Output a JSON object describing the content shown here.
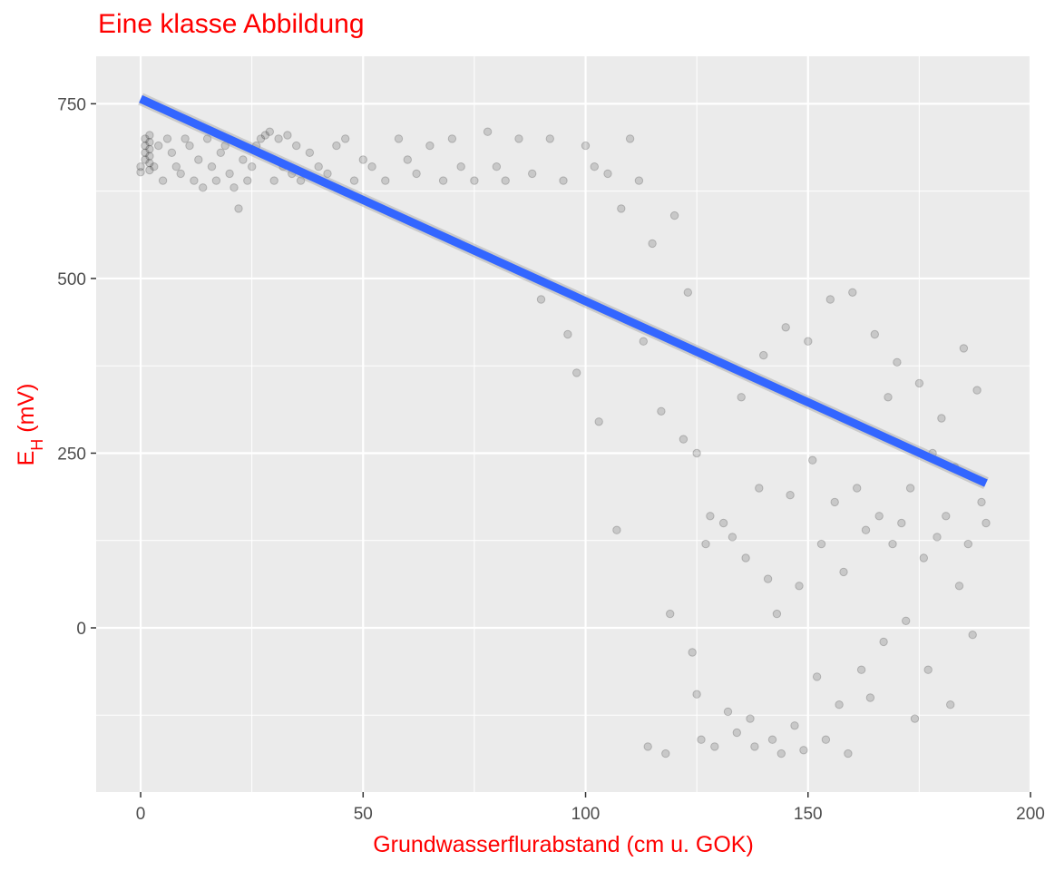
{
  "chart_data": {
    "type": "scatter",
    "title": "Eine klasse Abbildung",
    "xlabel": "Grundwasserflurabstand (cm u. GOK)",
    "ylabel": {
      "main": "E",
      "subscript": "H",
      "suffix": " (mV)"
    },
    "xlim": [
      -10,
      200
    ],
    "ylim": [
      -235,
      818
    ],
    "x_ticks": [
      0,
      50,
      100,
      150,
      200
    ],
    "y_ticks": [
      0,
      250,
      500,
      750
    ],
    "grid": true,
    "legend": "none",
    "point_color": "#000000",
    "point_alpha": 0.15,
    "background_color": "#ebebeb",
    "grid_color": "#ffffff",
    "title_color": "#ff0000",
    "line_color": "#3366ff",
    "regression_line": {
      "x": [
        0,
        190
      ],
      "y": [
        757,
        207
      ]
    },
    "series": [
      {
        "points": [
          [
            0,
            652
          ],
          [
            0,
            660
          ],
          [
            1,
            670
          ],
          [
            1,
            680
          ],
          [
            1,
            690
          ],
          [
            1,
            700
          ],
          [
            2,
            655
          ],
          [
            2,
            665
          ],
          [
            2,
            675
          ],
          [
            2,
            685
          ],
          [
            2,
            695
          ],
          [
            2,
            705
          ],
          [
            3,
            660
          ],
          [
            4,
            690
          ],
          [
            5,
            640
          ],
          [
            6,
            700
          ],
          [
            7,
            680
          ],
          [
            8,
            660
          ],
          [
            9,
            650
          ],
          [
            10,
            700
          ],
          [
            11,
            690
          ],
          [
            12,
            640
          ],
          [
            13,
            670
          ],
          [
            14,
            630
          ],
          [
            15,
            700
          ],
          [
            16,
            660
          ],
          [
            17,
            640
          ],
          [
            18,
            680
          ],
          [
            19,
            690
          ],
          [
            20,
            650
          ],
          [
            21,
            630
          ],
          [
            22,
            600
          ],
          [
            23,
            670
          ],
          [
            24,
            640
          ],
          [
            25,
            660
          ],
          [
            26,
            690
          ],
          [
            27,
            700
          ],
          [
            28,
            705
          ],
          [
            29,
            710
          ],
          [
            30,
            640
          ],
          [
            31,
            700
          ],
          [
            32,
            660
          ],
          [
            33,
            705
          ],
          [
            34,
            650
          ],
          [
            35,
            690
          ],
          [
            36,
            640
          ],
          [
            38,
            680
          ],
          [
            40,
            660
          ],
          [
            42,
            650
          ],
          [
            44,
            690
          ],
          [
            46,
            700
          ],
          [
            48,
            640
          ],
          [
            50,
            670
          ],
          [
            52,
            660
          ],
          [
            55,
            640
          ],
          [
            58,
            700
          ],
          [
            60,
            670
          ],
          [
            62,
            650
          ],
          [
            65,
            690
          ],
          [
            68,
            640
          ],
          [
            70,
            700
          ],
          [
            72,
            660
          ],
          [
            75,
            640
          ],
          [
            78,
            710
          ],
          [
            80,
            660
          ],
          [
            82,
            640
          ],
          [
            85,
            700
          ],
          [
            88,
            650
          ],
          [
            90,
            470
          ],
          [
            92,
            700
          ],
          [
            95,
            640
          ],
          [
            96,
            420
          ],
          [
            98,
            365
          ],
          [
            100,
            690
          ],
          [
            102,
            660
          ],
          [
            103,
            295
          ],
          [
            105,
            650
          ],
          [
            107,
            140
          ],
          [
            108,
            600
          ],
          [
            110,
            700
          ],
          [
            112,
            640
          ],
          [
            113,
            410
          ],
          [
            114,
            -170
          ],
          [
            115,
            550
          ],
          [
            117,
            310
          ],
          [
            118,
            -180
          ],
          [
            119,
            20
          ],
          [
            120,
            590
          ],
          [
            122,
            270
          ],
          [
            123,
            480
          ],
          [
            124,
            -35
          ],
          [
            125,
            250
          ],
          [
            125,
            -95
          ],
          [
            126,
            -160
          ],
          [
            127,
            120
          ],
          [
            128,
            160
          ],
          [
            129,
            -170
          ],
          [
            130,
            380
          ],
          [
            131,
            150
          ],
          [
            132,
            -120
          ],
          [
            133,
            130
          ],
          [
            134,
            -150
          ],
          [
            135,
            330
          ],
          [
            136,
            100
          ],
          [
            137,
            -130
          ],
          [
            138,
            -170
          ],
          [
            139,
            200
          ],
          [
            140,
            390
          ],
          [
            141,
            70
          ],
          [
            142,
            -160
          ],
          [
            143,
            20
          ],
          [
            144,
            -180
          ],
          [
            145,
            430
          ],
          [
            146,
            190
          ],
          [
            147,
            -140
          ],
          [
            148,
            60
          ],
          [
            149,
            -175
          ],
          [
            150,
            410
          ],
          [
            151,
            240
          ],
          [
            152,
            -70
          ],
          [
            153,
            120
          ],
          [
            154,
            -160
          ],
          [
            155,
            470
          ],
          [
            156,
            180
          ],
          [
            157,
            -110
          ],
          [
            158,
            80
          ],
          [
            159,
            -180
          ],
          [
            160,
            480
          ],
          [
            161,
            200
          ],
          [
            162,
            -60
          ],
          [
            163,
            140
          ],
          [
            164,
            -100
          ],
          [
            165,
            420
          ],
          [
            166,
            160
          ],
          [
            167,
            -20
          ],
          [
            168,
            330
          ],
          [
            169,
            120
          ],
          [
            170,
            380
          ],
          [
            171,
            150
          ],
          [
            172,
            10
          ],
          [
            173,
            200
          ],
          [
            174,
            -130
          ],
          [
            175,
            350
          ],
          [
            176,
            100
          ],
          [
            177,
            -60
          ],
          [
            178,
            250
          ],
          [
            179,
            130
          ],
          [
            180,
            300
          ],
          [
            181,
            160
          ],
          [
            182,
            -110
          ],
          [
            183,
            230
          ],
          [
            184,
            60
          ],
          [
            185,
            400
          ],
          [
            186,
            120
          ],
          [
            187,
            -10
          ],
          [
            188,
            340
          ],
          [
            189,
            180
          ],
          [
            190,
            150
          ]
        ]
      }
    ]
  }
}
